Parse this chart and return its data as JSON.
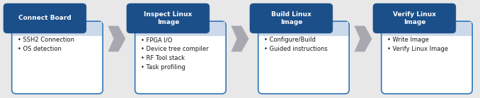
{
  "background_color": "#e8e8e8",
  "dark_blue": "#1b4f8a",
  "light_blue_border": "#2e75b6",
  "white": "#ffffff",
  "light_blue_header_overlap": "#ccd9ea",
  "arrow_color": "#a8a8b0",
  "header_text_color": "#ffffff",
  "body_text_color": "#1a1a1a",
  "steps": [
    {
      "title": "Connect Board",
      "bullets": [
        "SSH2 Connection",
        "OS detection"
      ]
    },
    {
      "title": "Inspect Linux\nImage",
      "bullets": [
        "FPGA I/O",
        "Device tree compiler",
        "RF Tool stack",
        "Task profiling"
      ]
    },
    {
      "title": "Build Linux\nImage",
      "bullets": [
        "Configure/Build",
        "Guided instructions"
      ]
    },
    {
      "title": "Verify Linux\nImage",
      "bullets": [
        "Write Image",
        "Verify Linux Image"
      ]
    }
  ],
  "fig_width": 6.78,
  "fig_height": 1.39,
  "dpi": 100
}
